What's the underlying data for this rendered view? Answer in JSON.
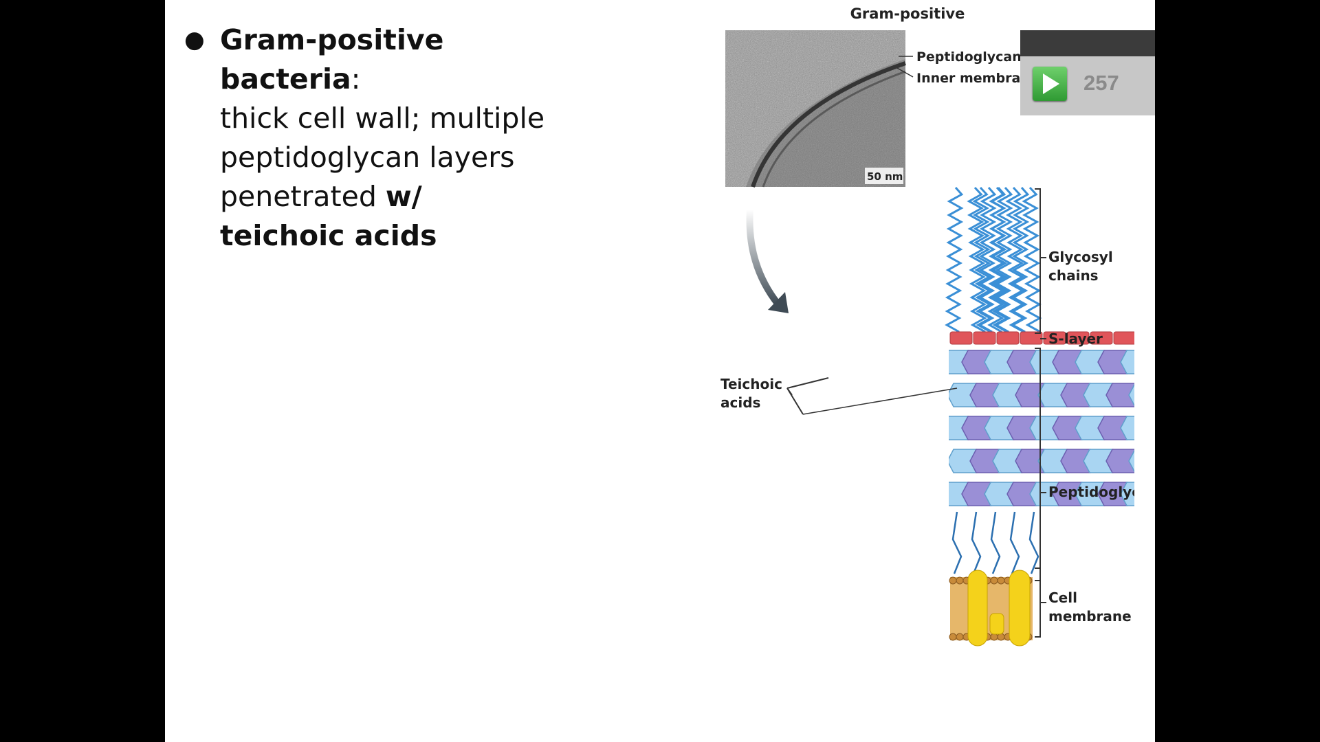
{
  "slide": {
    "bullet": {
      "heading": "Gram-positive bacteria",
      "colon": ":",
      "line1": "thick cell wall; multiple",
      "line2": "peptidoglycan layers",
      "line3": "penetrated",
      "bold1": "w/",
      "bold2": "teichoic acids"
    }
  },
  "figure": {
    "title": "Gram-positive",
    "micrograph": {
      "label_peptidoglycan": "Peptidoglycan",
      "label_inner_membrane": "Inner membrane",
      "scale_bar": "50 nm"
    },
    "labels": {
      "glycosyl_1": "Glycosyl",
      "glycosyl_2": "chains",
      "s_layer": "S-layer",
      "teichoic_1": "Teichoic",
      "teichoic_2": "acids",
      "peptidoglycan": "Peptidoglycan",
      "cell_1": "Cell",
      "cell_2": "membrane"
    },
    "colors": {
      "glycosyl": "#3a8fd6",
      "s_layer": "#e0555a",
      "nam": "#9a8fd6",
      "nag": "#a9d5f2",
      "membrane": "#e6b76a",
      "protein": "#f4d21b"
    }
  },
  "counter_widget": {
    "play_icon": "play-icon",
    "count": "257"
  }
}
